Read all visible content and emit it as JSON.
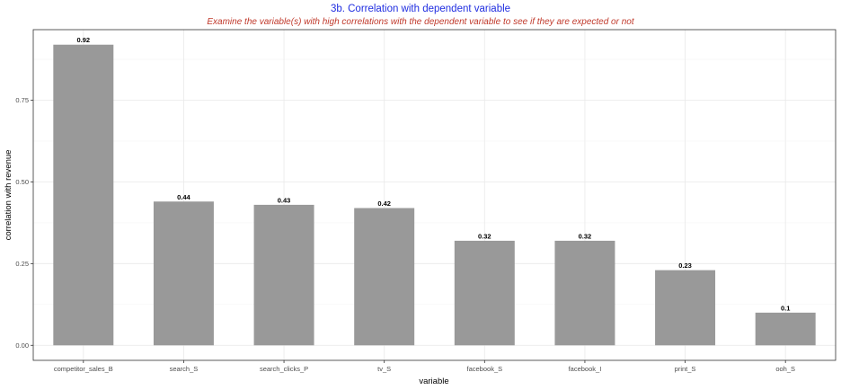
{
  "chart_data": {
    "type": "bar",
    "title": "3b. Correlation with dependent variable",
    "subtitle": "Examine the variable(s) with high correlations with the dependent variable to see if they are expected or not",
    "xlabel": "variable",
    "ylabel": "correlation with revenue",
    "categories": [
      "competitor_sales_B",
      "search_S",
      "search_clicks_P",
      "tv_S",
      "facebook_S",
      "facebook_I",
      "print_S",
      "ooh_S"
    ],
    "values": [
      0.92,
      0.44,
      0.43,
      0.42,
      0.32,
      0.32,
      0.23,
      0.1
    ],
    "data_labels": [
      "0.92",
      "0.44",
      "0.43",
      "0.42",
      "0.32",
      "0.32",
      "0.23",
      "0.1"
    ],
    "yticks": [
      0,
      0.25,
      0.5,
      0.75
    ],
    "ytick_labels": [
      "0.00",
      "0.25",
      "0.50",
      "0.75"
    ],
    "ylim": [
      -0.046,
      0.966
    ],
    "grid": true,
    "legend": "none",
    "colors": {
      "bar": "#999999",
      "grid_major": "#ebebeb",
      "grid_minor": "#f5f5f5",
      "panel_border": "#333333",
      "title": "#1f2de0",
      "subtitle": "#c0392b"
    }
  }
}
